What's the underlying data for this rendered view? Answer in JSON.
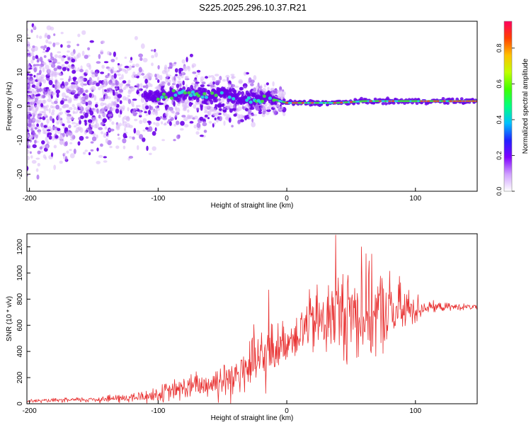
{
  "title": "S225.2025.296.10.37.R21",
  "colors": {
    "snr_line": "#e83030",
    "axis": "#000000",
    "scatter_light": "#d9b8f7",
    "scatter_mid": "#a35cf0",
    "scatter_dark": "#6a00e8",
    "track_cyan": "#20e0e0",
    "track_green": "#40e040",
    "track_red": "#ff3030"
  },
  "chart_data": [
    {
      "type": "heatmap",
      "name": "spectrogram",
      "xlabel": "Height of straight line (km)",
      "ylabel": "Frequency (Hz)",
      "xlim": [
        -202,
        148
      ],
      "ylim": [
        -25,
        25
      ],
      "xticks": [
        -200,
        -100,
        0,
        100
      ],
      "yticks": [
        -20,
        -10,
        0,
        10,
        20
      ],
      "track": {
        "x": [
          -100,
          -80,
          -60,
          -50,
          -40,
          -30,
          -20,
          -15,
          -10,
          0,
          20,
          40,
          60,
          80,
          100,
          120,
          148
        ],
        "freq": [
          3,
          4,
          3,
          4,
          3,
          2,
          2,
          3,
          2,
          1,
          1,
          1,
          1.5,
          1.5,
          1.5,
          1.5,
          1.5
        ]
      },
      "colorbar": {
        "label": "Normalized spectral amplitude",
        "ticks": [
          0.0,
          0.2,
          0.4,
          0.6,
          0.8
        ],
        "tick_labels": [
          "0.0",
          "0.2",
          "0.4",
          "0.6",
          "0.8"
        ],
        "range": [
          0,
          0.95
        ],
        "colormap": [
          "#ffffff",
          "#d0a0ff",
          "#8000ff",
          "#2020ff",
          "#00c0ff",
          "#00ff80",
          "#40ff00",
          "#c0ff00",
          "#ffc000",
          "#ff4000",
          "#ff0060"
        ]
      }
    },
    {
      "type": "line",
      "name": "snr",
      "xlabel": "Height of straight line (km)",
      "ylabel": "SNR (10 * v/v)",
      "xlim": [
        -202,
        148
      ],
      "ylim": [
        0,
        1300
      ],
      "xticks": [
        -200,
        -100,
        0,
        100
      ],
      "yticks": [
        0,
        200,
        400,
        600,
        800,
        1000,
        1200
      ],
      "envelope": {
        "x": [
          -202,
          -160,
          -120,
          -100,
          -80,
          -60,
          -40,
          -30,
          -20,
          -15,
          -10,
          0,
          10,
          20,
          30,
          40,
          50,
          60,
          70,
          80,
          90,
          100,
          110,
          120,
          148
        ],
        "mean": [
          20,
          30,
          45,
          70,
          120,
          150,
          220,
          280,
          330,
          360,
          420,
          480,
          560,
          620,
          640,
          680,
          700,
          700,
          700,
          700,
          710,
          730,
          740,
          740,
          740
        ],
        "spread": [
          15,
          25,
          50,
          80,
          120,
          150,
          250,
          300,
          350,
          300,
          250,
          180,
          250,
          330,
          380,
          420,
          480,
          500,
          420,
          380,
          280,
          150,
          60,
          40,
          25
        ]
      },
      "peaks": [
        {
          "x": -14,
          "y": 870
        },
        {
          "x": 38,
          "y": 1290
        },
        {
          "x": 58,
          "y": 1200
        }
      ]
    }
  ]
}
